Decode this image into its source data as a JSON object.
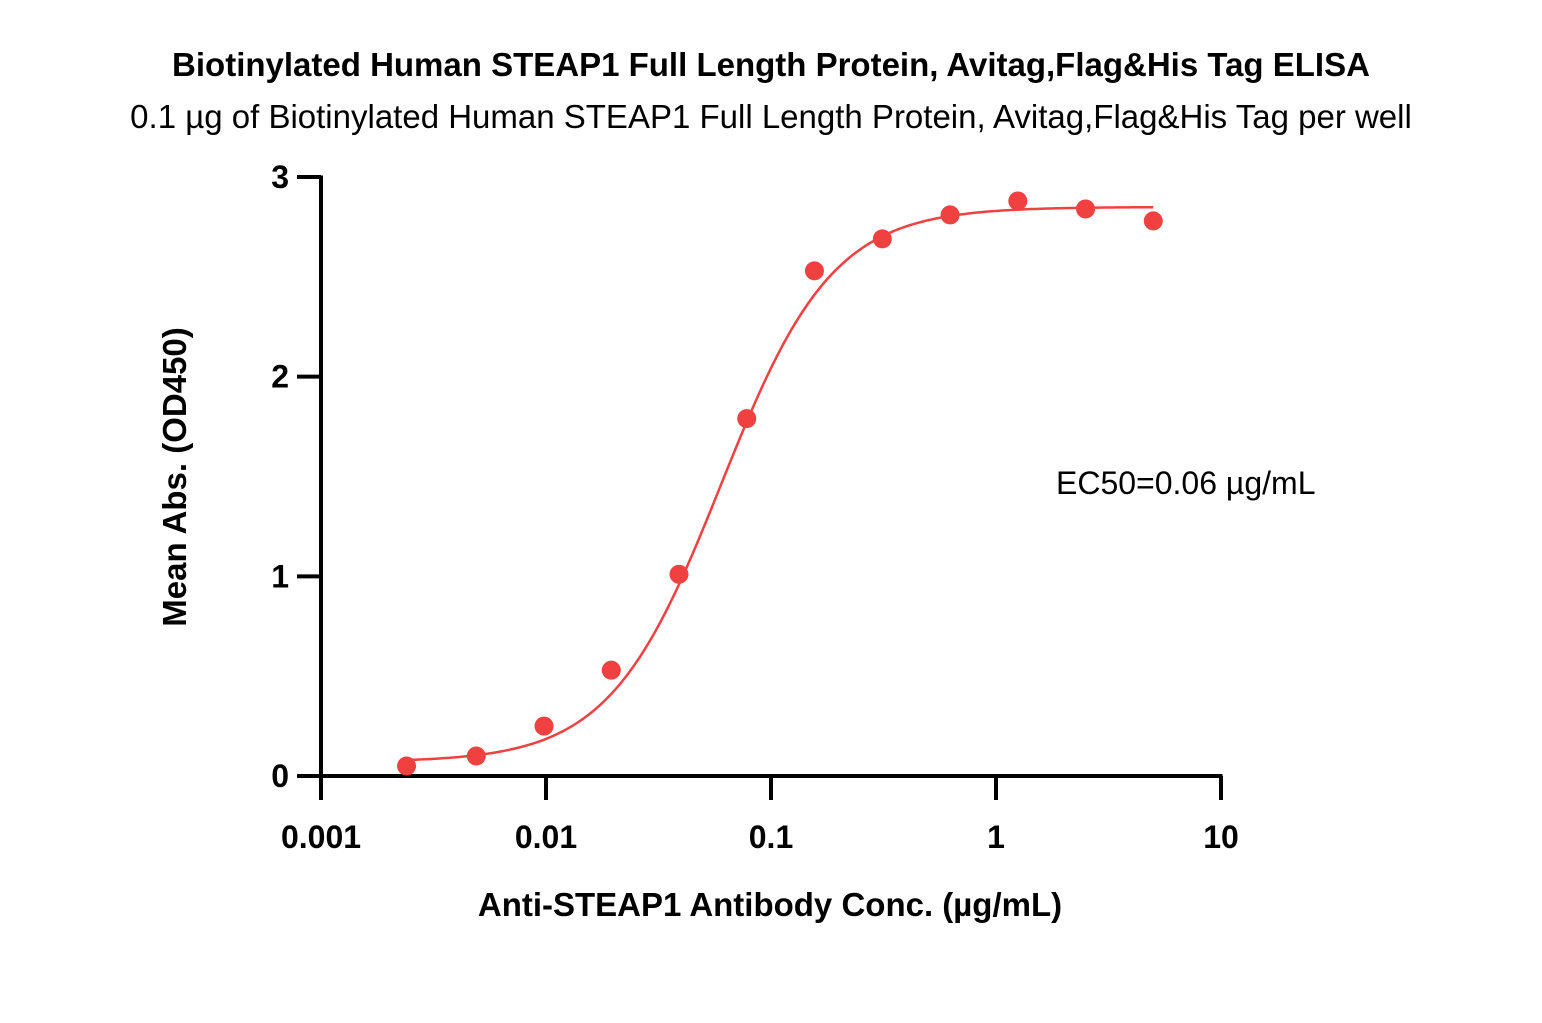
{
  "chart_data": {
    "type": "scatter",
    "title": "Biotinylated Human STEAP1 Full Length Protein, Avitag,Flag&His Tag ELISA",
    "subtitle": "0.1 µg of Biotinylated Human STEAP1 Full Length Protein, Avitag,Flag&His Tag per well",
    "xlabel": "Anti-STEAP1 Antibody Conc. (µg/mL)",
    "ylabel": "Mean Abs. (OD450)",
    "x_scale": "log",
    "xlim": [
      0.001,
      10
    ],
    "ylim": [
      0,
      3
    ],
    "x_ticks": [
      0.001,
      0.01,
      0.1,
      1,
      10
    ],
    "x_tick_labels": [
      "0.001",
      "0.01",
      "0.1",
      "1",
      "10"
    ],
    "y_ticks": [
      0,
      1,
      2,
      3
    ],
    "y_tick_labels": [
      "0",
      "1",
      "2",
      "3"
    ],
    "grid": false,
    "series": [
      {
        "color": "#f04040",
        "x": [
          0.0024,
          0.0049,
          0.0098,
          0.0195,
          0.039,
          0.078,
          0.156,
          0.3125,
          0.625,
          1.25,
          2.5,
          5.0
        ],
        "y": [
          0.05,
          0.1,
          0.25,
          0.53,
          1.01,
          1.79,
          2.53,
          2.69,
          2.81,
          2.88,
          2.84,
          2.78
        ],
        "fit": {
          "model": "4PL",
          "bottom": 0.07,
          "top": 2.85,
          "ec50": 0.06,
          "hill": 1.75
        }
      }
    ],
    "annotation": "EC50=0.06 µg/mL"
  }
}
